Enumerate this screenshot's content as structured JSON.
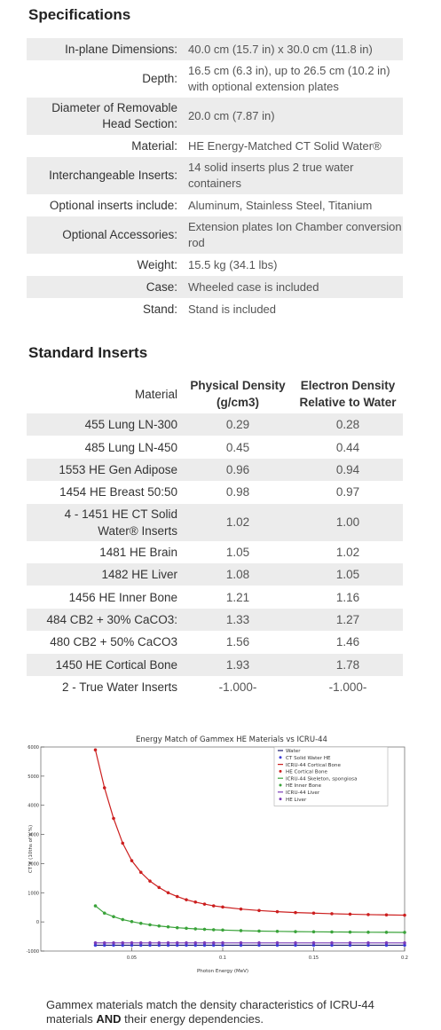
{
  "specifications": {
    "heading": "Specifications",
    "rows": [
      {
        "label": "In-plane Dimensions:",
        "value": "40.0 cm (15.7 in) x 30.0 cm (11.8 in)"
      },
      {
        "label": "Depth:",
        "value": "16.5 cm (6.3 in), up to 26.5 cm (10.2 in) with optional extension plates"
      },
      {
        "label": "Diameter of Removable Head Section:",
        "value": "20.0 cm (7.87 in)"
      },
      {
        "label": "Material:",
        "value": "HE Energy-Matched CT Solid Water®"
      },
      {
        "label": "Interchangeable Inserts:",
        "value": "14 solid inserts plus 2 true water containers"
      },
      {
        "label": "Optional inserts include:",
        "value": "Aluminum, Stainless Steel, Titanium"
      },
      {
        "label": "Optional Accessories:",
        "value": "Extension plates Ion Chamber conversion rod"
      },
      {
        "label": "Weight:",
        "value": "15.5 kg (34.1 lbs)"
      },
      {
        "label": "Case:",
        "value": "Wheeled case is included"
      },
      {
        "label": "Stand:",
        "value": "Stand is included"
      }
    ]
  },
  "inserts": {
    "heading": "Standard Inserts",
    "headers": [
      "Material",
      "Physical Density (g/cm3)",
      "Electron Density Relative to Water"
    ],
    "rows": [
      {
        "material": "455 Lung LN-300",
        "physical": "0.29",
        "electron": "0.28"
      },
      {
        "material": "485 Lung LN-450",
        "physical": "0.45",
        "electron": "0.44"
      },
      {
        "material": "1553 HE Gen Adipose",
        "physical": "0.96",
        "electron": "0.94"
      },
      {
        "material": "1454 HE Breast 50:50",
        "physical": "0.98",
        "electron": "0.97"
      },
      {
        "material": "4 - 1451 HE CT Solid Water® Inserts",
        "physical": "1.02",
        "electron": "1.00"
      },
      {
        "material": "1481 HE Brain",
        "physical": "1.05",
        "electron": "1.02"
      },
      {
        "material": "1482 HE Liver",
        "physical": "1.08",
        "electron": "1.05"
      },
      {
        "material": "1456 HE Inner Bone",
        "physical": "1.21",
        "electron": "1.16"
      },
      {
        "material": "484 CB2 + 30% CaCO3:",
        "physical": "1.33",
        "electron": "1.27"
      },
      {
        "material": "480 CB2 + 50% CaCO3",
        "physical": "1.56",
        "electron": "1.46"
      },
      {
        "material": "1450 HE Cortical Bone",
        "physical": "1.93",
        "electron": "1.78"
      },
      {
        "material": "2 - True Water Inserts",
        "physical": "-1.000-",
        "electron": "-1.000-"
      }
    ]
  },
  "chart_data": {
    "type": "line",
    "title": "Energy Match of Gammex HE Materials vs ICRU-44",
    "xlabel": "Photon Energy (MeV)",
    "ylabel": "CT # (10ths of a %)",
    "xlim": [
      0,
      0.2
    ],
    "ylim": [
      -1000,
      6000
    ],
    "xticks": [
      "0.05",
      "0.1",
      "0.15",
      "0.2"
    ],
    "yticks": [
      "-1000",
      "0",
      "1000",
      "2000",
      "3000",
      "4000",
      "5000",
      "6000"
    ],
    "legend_position": "top-right",
    "x": [
      0.03,
      0.035,
      0.04,
      0.045,
      0.05,
      0.055,
      0.06,
      0.065,
      0.07,
      0.075,
      0.08,
      0.085,
      0.09,
      0.095,
      0.1,
      0.11,
      0.12,
      0.13,
      0.14,
      0.15,
      0.16,
      0.17,
      0.18,
      0.19,
      0.2
    ],
    "series": [
      {
        "name": "Water",
        "color": "#1a1a6e",
        "style": "line",
        "values": [
          -800,
          -800,
          -800,
          -800,
          -800,
          -800,
          -800,
          -800,
          -800,
          -800,
          -800,
          -800,
          -800,
          -800,
          -800,
          -800,
          -800,
          -800,
          -800,
          -800,
          -800,
          -800,
          -800,
          -800,
          -800
        ]
      },
      {
        "name": "CT Solid Water HE",
        "color": "#3b3bd9",
        "style": "marker",
        "values": [
          -800,
          -800,
          -800,
          -800,
          -800,
          -800,
          -800,
          -800,
          -800,
          -800,
          -800,
          -800,
          -800,
          -800,
          -800,
          -800,
          -800,
          -800,
          -800,
          -800,
          -800,
          -800,
          -800,
          -800,
          -800
        ]
      },
      {
        "name": "ICRU-44 Cortical Bone",
        "color": "#cc1f1f",
        "style": "line",
        "values": [
          5900,
          4600,
          3550,
          2700,
          2100,
          1700,
          1400,
          1180,
          1000,
          870,
          760,
          680,
          610,
          550,
          510,
          440,
          390,
          350,
          320,
          300,
          280,
          265,
          250,
          240,
          230
        ]
      },
      {
        "name": "HE Cortical Bone",
        "color": "#cc1f1f",
        "style": "marker",
        "values": [
          5900,
          4600,
          3550,
          2700,
          2100,
          1700,
          1400,
          1180,
          1000,
          870,
          760,
          680,
          610,
          550,
          510,
          440,
          390,
          350,
          320,
          300,
          280,
          265,
          250,
          240,
          230
        ]
      },
      {
        "name": "ICRU-44 Skeleton, spongiosa",
        "color": "#3aa33a",
        "style": "line",
        "values": [
          550,
          300,
          180,
          80,
          10,
          -50,
          -100,
          -140,
          -170,
          -200,
          -220,
          -240,
          -255,
          -270,
          -280,
          -300,
          -315,
          -325,
          -335,
          -340,
          -345,
          -350,
          -355,
          -358,
          -360
        ]
      },
      {
        "name": "HE Inner Bone",
        "color": "#3aa33a",
        "style": "marker",
        "values": [
          550,
          300,
          180,
          80,
          10,
          -50,
          -100,
          -140,
          -170,
          -200,
          -220,
          -240,
          -255,
          -270,
          -280,
          -300,
          -315,
          -325,
          -335,
          -340,
          -345,
          -350,
          -355,
          -358,
          -360
        ]
      },
      {
        "name": "ICRU-44 Liver",
        "color": "#7a3ab8",
        "style": "line",
        "values": [
          -720,
          -720,
          -720,
          -720,
          -720,
          -720,
          -720,
          -720,
          -720,
          -720,
          -720,
          -720,
          -720,
          -720,
          -720,
          -720,
          -720,
          -720,
          -720,
          -720,
          -720,
          -720,
          -720,
          -720,
          -720
        ]
      },
      {
        "name": "HE Liver",
        "color": "#7a3ab8",
        "style": "marker",
        "values": [
          -720,
          -720,
          -720,
          -720,
          -720,
          -720,
          -720,
          -720,
          -720,
          -720,
          -720,
          -720,
          -720,
          -720,
          -720,
          -720,
          -720,
          -720,
          -720,
          -720,
          -720,
          -720,
          -720,
          -720,
          -720
        ]
      }
    ]
  },
  "caption": {
    "text_before": "Gammex materials match the density characteristics of ICRU-44 materials ",
    "bold": "AND",
    "text_after": " their energy dependencies."
  }
}
